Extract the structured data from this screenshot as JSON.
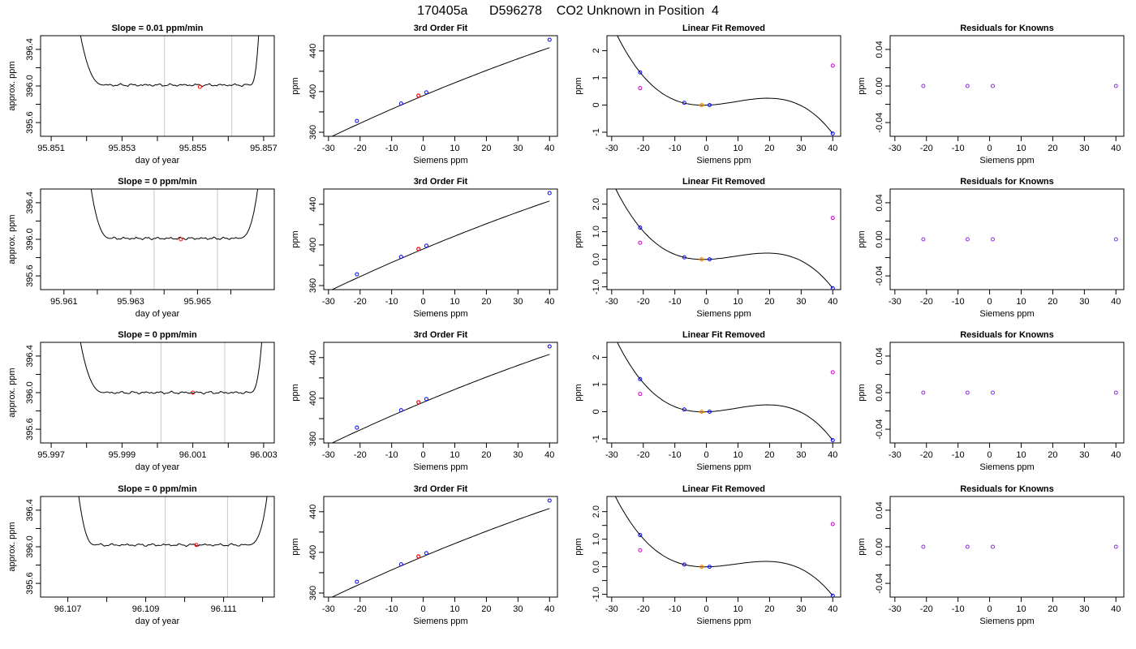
{
  "page_title": "170405a      D596278    CO2 Unknown in Position  4",
  "colors": {
    "axis": "#000000",
    "trace": "#000000",
    "window_line": "#c8c8c8",
    "known_point": "#0000ff",
    "unknown_point": "#ff0000",
    "unknown_residual_point": "#ff8c00",
    "linear_residual_point": "#cc00cc",
    "knowns_residual_point": "#8a2be2"
  },
  "chart_data": [
    {
      "type": "line",
      "title": "Slope =  0.01  ppm/min",
      "xlabel": "day of year",
      "ylabel": "approx. ppm",
      "xlim": [
        95.8507,
        95.8573
      ],
      "ylim": [
        395.45,
        396.55
      ],
      "x_ticks": [
        95.851,
        95.853,
        95.855,
        95.857
      ],
      "x_tick_labels": [
        "95.851",
        "95.853",
        "95.855",
        "95.857"
      ],
      "x_minor_ticks": [
        95.852,
        95.854,
        95.856
      ],
      "y_ticks": [
        395.6,
        396.0,
        396.4
      ],
      "y_tick_labels": [
        "395.6",
        "396.0",
        "396.4"
      ],
      "y_minor_ticks": [
        395.8,
        396.2
      ],
      "window_lines_x": [
        95.8542,
        95.8561
      ],
      "trace": {
        "x_start": 95.8517,
        "x_end": 95.8569,
        "rise_start": 95.8521,
        "flat_start": 95.8525,
        "flat_end": 95.8566,
        "rise_end": 95.85675,
        "level": 396.01
      },
      "marker": {
        "x": 95.8552,
        "y": 395.99
      }
    },
    {
      "type": "scatter",
      "title": "3rd Order Fit",
      "xlabel": "Siemens ppm",
      "ylabel": "ppm",
      "xlim": [
        -31.5,
        42.5
      ],
      "ylim": [
        356,
        455
      ],
      "x_ticks": [
        -30,
        -20,
        -10,
        0,
        10,
        20,
        30,
        40
      ],
      "x_tick_labels": [
        "-30",
        "-20",
        "-10",
        "0",
        "10",
        "20",
        "30",
        "40"
      ],
      "y_ticks": [
        360,
        400,
        440
      ],
      "y_tick_labels": [
        "360",
        "400",
        "440"
      ],
      "y_minor_ticks": [
        380,
        420
      ],
      "fit_curve": {
        "x_range": [
          -29.5,
          40
        ],
        "a": 396.0,
        "b": 1.3,
        "c": -0.003,
        "d": 0
      },
      "known_points": [
        {
          "x": -21,
          "y": 371.1
        },
        {
          "x": -7,
          "y": 388.2
        },
        {
          "x": 1,
          "y": 399.2
        },
        {
          "x": 40,
          "y": 451
        }
      ],
      "unknown_point": {
        "x": -1.5,
        "y": 396.0
      }
    },
    {
      "type": "scatter",
      "title": "Linear Fit Removed",
      "xlabel": "Siemens ppm",
      "ylabel": "ppm",
      "xlim": [
        -31.5,
        42.5
      ],
      "ylim": [
        -1.15,
        2.55
      ],
      "x_ticks": [
        -30,
        -20,
        -10,
        0,
        10,
        20,
        30,
        40
      ],
      "x_tick_labels": [
        "-30",
        "-20",
        "-10",
        "0",
        "10",
        "20",
        "30",
        "40"
      ],
      "y_ticks": [
        -1,
        0,
        1,
        2
      ],
      "y_tick_labels": [
        "-1",
        "0",
        "1",
        "2"
      ],
      "curve_points": [
        {
          "x": -29.5,
          "y": 2.5
        },
        {
          "x": -21,
          "y": 1.2
        },
        {
          "x": -7,
          "y": 0.07
        },
        {
          "x": 1,
          "y": 0.0
        },
        {
          "x": 40,
          "y": -1.05
        }
      ],
      "known_points": [
        {
          "x": -21,
          "y": 1.2
        },
        {
          "x": -7,
          "y": 0.08
        },
        {
          "x": 1,
          "y": 0.0
        },
        {
          "x": 40,
          "y": -1.05
        }
      ],
      "unknown_point": {
        "x": -1.5,
        "y": 0.0
      },
      "linear_residual_points": [
        {
          "x": -21,
          "y": 0.62
        },
        {
          "x": 40,
          "y": 1.45
        }
      ]
    },
    {
      "type": "scatter",
      "title": "Residuals for Knowns",
      "xlabel": "Siemens ppm",
      "ylabel": "ppm",
      "xlim": [
        -31.5,
        42.5
      ],
      "ylim": [
        -0.055,
        0.055
      ],
      "x_ticks": [
        -30,
        -20,
        -10,
        0,
        10,
        20,
        30,
        40
      ],
      "x_tick_labels": [
        "-30",
        "-20",
        "-10",
        "0",
        "10",
        "20",
        "30",
        "40"
      ],
      "y_ticks": [
        -0.04,
        0.0,
        0.04
      ],
      "y_tick_labels": [
        "-0.04",
        "0.00",
        "0.04"
      ],
      "y_minor_ticks": [
        -0.02,
        0.02
      ],
      "known_points": [
        {
          "x": -21,
          "y": 0.0
        },
        {
          "x": -7,
          "y": 0.0
        },
        {
          "x": 1,
          "y": 0.0
        },
        {
          "x": 40,
          "y": 0.0
        }
      ]
    },
    {
      "type": "line",
      "title": "Slope =  0  ppm/min",
      "xlabel": "day of year",
      "ylabel": "approx. ppm",
      "xlim": [
        95.9603,
        95.9673
      ],
      "ylim": [
        395.45,
        396.55
      ],
      "x_ticks": [
        95.961,
        95.963,
        95.965
      ],
      "x_tick_labels": [
        "95.961",
        "95.963",
        "95.965"
      ],
      "x_minor_ticks": [
        95.962,
        95.964,
        95.966
      ],
      "y_ticks": [
        395.6,
        396.0,
        396.4
      ],
      "y_tick_labels": [
        "395.6",
        "396.0",
        "396.4"
      ],
      "y_minor_ticks": [
        395.8,
        396.2
      ],
      "window_lines_x": [
        95.9637,
        95.9656
      ],
      "trace": {
        "x_start": 95.9617,
        "x_end": 95.9669,
        "rise_start": 95.962,
        "flat_start": 95.9624,
        "flat_end": 95.9662,
        "rise_end": 95.96645,
        "level": 396.01
      },
      "marker": {
        "x": 95.9645,
        "y": 396.0
      }
    },
    {
      "type": "scatter",
      "title": "3rd Order Fit",
      "xlabel": "Siemens ppm",
      "ylabel": "ppm",
      "xlim": [
        -31.5,
        42.5
      ],
      "ylim": [
        356,
        455
      ],
      "x_ticks": [
        -30,
        -20,
        -10,
        0,
        10,
        20,
        30,
        40
      ],
      "x_tick_labels": [
        "-30",
        "-20",
        "-10",
        "0",
        "10",
        "20",
        "30",
        "40"
      ],
      "y_ticks": [
        360,
        400,
        440
      ],
      "y_tick_labels": [
        "360",
        "400",
        "440"
      ],
      "y_minor_ticks": [
        380,
        420
      ],
      "fit_curve": {
        "x_range": [
          -29.5,
          40
        ],
        "a": 396.0,
        "b": 1.3,
        "c": -0.003,
        "d": 0
      },
      "known_points": [
        {
          "x": -21,
          "y": 371.1
        },
        {
          "x": -7,
          "y": 388.2
        },
        {
          "x": 1,
          "y": 399.2
        },
        {
          "x": 40,
          "y": 451
        }
      ],
      "unknown_point": {
        "x": -1.5,
        "y": 396.0
      }
    },
    {
      "type": "scatter",
      "title": "Linear Fit Removed",
      "xlabel": "Siemens ppm",
      "ylabel": "ppm",
      "xlim": [
        -31.5,
        42.5
      ],
      "ylim": [
        -1.1,
        2.55
      ],
      "x_ticks": [
        -30,
        -20,
        -10,
        0,
        10,
        20,
        30,
        40
      ],
      "x_tick_labels": [
        "-30",
        "-20",
        "-10",
        "0",
        "10",
        "20",
        "30",
        "40"
      ],
      "y_ticks": [
        -1.0,
        0.0,
        1.0,
        2.0
      ],
      "y_tick_labels": [
        "-1.0",
        "0.0",
        "1.0",
        "2.0"
      ],
      "y_minor_ticks": [
        -0.5,
        0.5,
        1.5
      ],
      "curve_points": [
        {
          "x": -29.5,
          "y": 2.5
        },
        {
          "x": -21,
          "y": 1.15
        },
        {
          "x": -7,
          "y": 0.07
        },
        {
          "x": 1,
          "y": 0.0
        },
        {
          "x": 40,
          "y": -1.05
        }
      ],
      "known_points": [
        {
          "x": -21,
          "y": 1.15
        },
        {
          "x": -7,
          "y": 0.07
        },
        {
          "x": 1,
          "y": 0.0
        },
        {
          "x": 40,
          "y": -1.05
        }
      ],
      "unknown_point": {
        "x": -1.5,
        "y": 0.0
      },
      "linear_residual_points": [
        {
          "x": -21,
          "y": 0.6
        },
        {
          "x": 40,
          "y": 1.5
        }
      ]
    },
    {
      "type": "scatter",
      "title": "Residuals for Knowns",
      "xlabel": "Siemens ppm",
      "ylabel": "ppm",
      "xlim": [
        -31.5,
        42.5
      ],
      "ylim": [
        -0.055,
        0.055
      ],
      "x_ticks": [
        -30,
        -20,
        -10,
        0,
        10,
        20,
        30,
        40
      ],
      "x_tick_labels": [
        "-30",
        "-20",
        "-10",
        "0",
        "10",
        "20",
        "30",
        "40"
      ],
      "y_ticks": [
        -0.04,
        0.0,
        0.04
      ],
      "y_tick_labels": [
        "-0.04",
        "0.00",
        "0.04"
      ],
      "y_minor_ticks": [
        -0.02,
        0.02
      ],
      "known_points": [
        {
          "x": -21,
          "y": 0.0
        },
        {
          "x": -7,
          "y": 0.0
        },
        {
          "x": 1,
          "y": 0.0
        },
        {
          "x": 40,
          "y": 0.0
        }
      ]
    },
    {
      "type": "line",
      "title": "Slope =  0  ppm/min",
      "xlabel": "day of year",
      "ylabel": "approx. ppm",
      "xlim": [
        95.9967,
        96.0033
      ],
      "ylim": [
        395.45,
        396.55
      ],
      "x_ticks": [
        95.997,
        95.999,
        96.001,
        96.003
      ],
      "x_tick_labels": [
        "95.997",
        "95.999",
        "96.001",
        "96.003"
      ],
      "x_minor_ticks": [
        95.998,
        96.0,
        96.002
      ],
      "y_ticks": [
        395.6,
        396.0,
        396.4
      ],
      "y_tick_labels": [
        "395.6",
        "396.0",
        "396.4"
      ],
      "y_minor_ticks": [
        395.8,
        396.2
      ],
      "window_lines_x": [
        96.0001,
        96.0019
      ],
      "trace": {
        "x_start": 95.9977,
        "x_end": 96.003,
        "rise_start": 95.9982,
        "flat_start": 95.9985,
        "flat_end": 96.0026,
        "rise_end": 96.00275,
        "level": 396.0
      },
      "marker": {
        "x": 96.001,
        "y": 396.0
      }
    },
    {
      "type": "scatter",
      "title": "3rd Order Fit",
      "xlabel": "Siemens ppm",
      "ylabel": "ppm",
      "xlim": [
        -31.5,
        42.5
      ],
      "ylim": [
        356,
        455
      ],
      "x_ticks": [
        -30,
        -20,
        -10,
        0,
        10,
        20,
        30,
        40
      ],
      "x_tick_labels": [
        "-30",
        "-20",
        "-10",
        "0",
        "10",
        "20",
        "30",
        "40"
      ],
      "y_ticks": [
        360,
        400,
        440
      ],
      "y_tick_labels": [
        "360",
        "400",
        "440"
      ],
      "y_minor_ticks": [
        380,
        420
      ],
      "fit_curve": {
        "x_range": [
          -29.5,
          40
        ],
        "a": 396.0,
        "b": 1.3,
        "c": -0.003,
        "d": 0
      },
      "known_points": [
        {
          "x": -21,
          "y": 371.1
        },
        {
          "x": -7,
          "y": 388.2
        },
        {
          "x": 1,
          "y": 399.2
        },
        {
          "x": 40,
          "y": 451
        }
      ],
      "unknown_point": {
        "x": -1.5,
        "y": 396.0
      }
    },
    {
      "type": "scatter",
      "title": "Linear Fit Removed",
      "xlabel": "Siemens ppm",
      "ylabel": "ppm",
      "xlim": [
        -31.5,
        42.5
      ],
      "ylim": [
        -1.15,
        2.55
      ],
      "x_ticks": [
        -30,
        -20,
        -10,
        0,
        10,
        20,
        30,
        40
      ],
      "x_tick_labels": [
        "-30",
        "-20",
        "-10",
        "0",
        "10",
        "20",
        "30",
        "40"
      ],
      "y_ticks": [
        -1,
        0,
        1,
        2
      ],
      "y_tick_labels": [
        "-1",
        "0",
        "1",
        "2"
      ],
      "curve_points": [
        {
          "x": -29.5,
          "y": 2.5
        },
        {
          "x": -21,
          "y": 1.2
        },
        {
          "x": -7,
          "y": 0.07
        },
        {
          "x": 1,
          "y": 0.0
        },
        {
          "x": 40,
          "y": -1.05
        }
      ],
      "known_points": [
        {
          "x": -21,
          "y": 1.2
        },
        {
          "x": -7,
          "y": 0.08
        },
        {
          "x": 1,
          "y": 0.0
        },
        {
          "x": 40,
          "y": -1.05
        }
      ],
      "unknown_point": {
        "x": -1.5,
        "y": 0.0
      },
      "linear_residual_points": [
        {
          "x": -21,
          "y": 0.65
        },
        {
          "x": 40,
          "y": 1.45
        }
      ]
    },
    {
      "type": "scatter",
      "title": "Residuals for Knowns",
      "xlabel": "Siemens ppm",
      "ylabel": "ppm",
      "xlim": [
        -31.5,
        42.5
      ],
      "ylim": [
        -0.055,
        0.055
      ],
      "x_ticks": [
        -30,
        -20,
        -10,
        0,
        10,
        20,
        30,
        40
      ],
      "x_tick_labels": [
        "-30",
        "-20",
        "-10",
        "0",
        "10",
        "20",
        "30",
        "40"
      ],
      "y_ticks": [
        -0.04,
        0.0,
        0.04
      ],
      "y_tick_labels": [
        "-0.04",
        "0.00",
        "0.04"
      ],
      "y_minor_ticks": [
        -0.02,
        0.02
      ],
      "known_points": [
        {
          "x": -21,
          "y": 0.0
        },
        {
          "x": -7,
          "y": 0.0
        },
        {
          "x": 1,
          "y": 0.0
        },
        {
          "x": 40,
          "y": 0.0
        }
      ]
    },
    {
      "type": "line",
      "title": "Slope =  0  ppm/min",
      "xlabel": "day of year",
      "ylabel": "approx. ppm",
      "xlim": [
        96.1063,
        96.1123
      ],
      "ylim": [
        395.45,
        396.55
      ],
      "x_ticks": [
        96.107,
        96.109,
        96.111
      ],
      "x_tick_labels": [
        "96.107",
        "96.109",
        "96.111"
      ],
      "x_minor_ticks": [
        96.108,
        96.11,
        96.112
      ],
      "y_ticks": [
        395.6,
        396.0,
        396.4
      ],
      "y_tick_labels": [
        "395.6",
        "396.0",
        "396.4"
      ],
      "y_minor_ticks": [
        395.8,
        396.2
      ],
      "window_lines_x": [
        96.1095,
        96.1111
      ],
      "trace": {
        "x_start": 96.1072,
        "x_end": 96.1122,
        "rise_start": 96.1074,
        "flat_start": 96.1077,
        "flat_end": 96.1116,
        "rise_end": 96.11185,
        "level": 396.02
      },
      "marker": {
        "x": 96.1103,
        "y": 396.02
      }
    },
    {
      "type": "scatter",
      "title": "3rd Order Fit",
      "xlabel": "Siemens ppm",
      "ylabel": "ppm",
      "xlim": [
        -31.5,
        42.5
      ],
      "ylim": [
        356,
        455
      ],
      "x_ticks": [
        -30,
        -20,
        -10,
        0,
        10,
        20,
        30,
        40
      ],
      "x_tick_labels": [
        "-30",
        "-20",
        "-10",
        "0",
        "10",
        "20",
        "30",
        "40"
      ],
      "y_ticks": [
        360,
        400,
        440
      ],
      "y_tick_labels": [
        "360",
        "400",
        "440"
      ],
      "y_minor_ticks": [
        380,
        420
      ],
      "fit_curve": {
        "x_range": [
          -29.5,
          40
        ],
        "a": 396.0,
        "b": 1.3,
        "c": -0.003,
        "d": 0
      },
      "known_points": [
        {
          "x": -21,
          "y": 371.1
        },
        {
          "x": -7,
          "y": 388.2
        },
        {
          "x": 1,
          "y": 399.2
        },
        {
          "x": 40,
          "y": 451
        }
      ],
      "unknown_point": {
        "x": -1.5,
        "y": 396.0
      }
    },
    {
      "type": "scatter",
      "title": "Linear Fit Removed",
      "xlabel": "Siemens ppm",
      "ylabel": "ppm",
      "xlim": [
        -31.5,
        42.5
      ],
      "ylim": [
        -1.1,
        2.55
      ],
      "x_ticks": [
        -30,
        -20,
        -10,
        0,
        10,
        20,
        30,
        40
      ],
      "x_tick_labels": [
        "-30",
        "-20",
        "-10",
        "0",
        "10",
        "20",
        "30",
        "40"
      ],
      "y_ticks": [
        -1.0,
        0.0,
        1.0,
        2.0
      ],
      "y_tick_labels": [
        "-1.0",
        "0.0",
        "1.0",
        "2.0"
      ],
      "y_minor_ticks": [
        -0.5,
        0.5,
        1.5
      ],
      "curve_points": [
        {
          "x": -29.5,
          "y": 2.5
        },
        {
          "x": -21,
          "y": 1.15
        },
        {
          "x": -7,
          "y": 0.08
        },
        {
          "x": 1,
          "y": 0.0
        },
        {
          "x": 40,
          "y": -1.05
        }
      ],
      "known_points": [
        {
          "x": -21,
          "y": 1.15
        },
        {
          "x": -7,
          "y": 0.08
        },
        {
          "x": 1,
          "y": 0.0
        },
        {
          "x": 40,
          "y": -1.05
        }
      ],
      "unknown_point": {
        "x": -1.5,
        "y": 0.0
      },
      "linear_residual_points": [
        {
          "x": -21,
          "y": 0.6
        },
        {
          "x": 40,
          "y": 1.55
        }
      ]
    },
    {
      "type": "scatter",
      "title": "Residuals for Knowns",
      "xlabel": "Siemens ppm",
      "ylabel": "ppm",
      "xlim": [
        -31.5,
        42.5
      ],
      "ylim": [
        -0.055,
        0.055
      ],
      "x_ticks": [
        -30,
        -20,
        -10,
        0,
        10,
        20,
        30,
        40
      ],
      "x_tick_labels": [
        "-30",
        "-20",
        "-10",
        "0",
        "10",
        "20",
        "30",
        "40"
      ],
      "y_ticks": [
        -0.04,
        0.0,
        0.04
      ],
      "y_tick_labels": [
        "-0.04",
        "0.00",
        "0.04"
      ],
      "y_minor_ticks": [
        -0.02,
        0.02
      ],
      "known_points": [
        {
          "x": -21,
          "y": 0.0
        },
        {
          "x": -7,
          "y": 0.0
        },
        {
          "x": 1,
          "y": 0.0
        },
        {
          "x": 40,
          "y": 0.0
        }
      ]
    }
  ]
}
